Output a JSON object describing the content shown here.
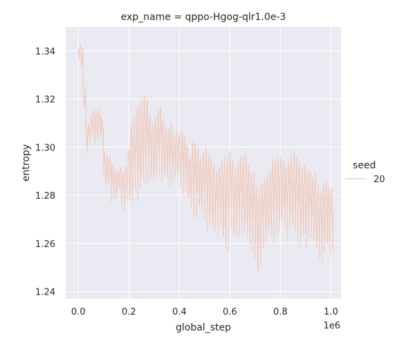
{
  "chart_data": {
    "type": "line",
    "title": "exp_name = qppo-Hgog-qlr1.0e-3",
    "xlabel": "global_step",
    "ylabel": "entropy",
    "x_offset_label": "1e6",
    "xlim": [
      -0.05,
      1.04
    ],
    "ylim": [
      1.237,
      1.35
    ],
    "xticks": [
      0.0,
      0.2,
      0.4,
      0.6,
      0.8,
      1.0
    ],
    "xtick_labels": [
      "0.0",
      "0.2",
      "0.4",
      "0.6",
      "0.8",
      "1.0"
    ],
    "yticks": [
      1.24,
      1.26,
      1.28,
      1.3,
      1.32,
      1.34
    ],
    "ytick_labels": [
      "1.24",
      "1.26",
      "1.28",
      "1.30",
      "1.32",
      "1.34"
    ],
    "grid": true,
    "background": "#eaeaf2",
    "legend": {
      "title": "seed",
      "placement": "right",
      "entries": [
        "20"
      ]
    },
    "series": [
      {
        "name": "20",
        "color": "#efcfc4",
        "x": [
          0.0,
          0.01,
          0.02,
          0.03,
          0.04,
          0.05,
          0.06,
          0.07,
          0.08,
          0.09,
          0.1,
          0.11,
          0.12,
          0.13,
          0.14,
          0.15,
          0.16,
          0.17,
          0.18,
          0.19,
          0.2,
          0.21,
          0.22,
          0.23,
          0.24,
          0.25,
          0.26,
          0.27,
          0.28,
          0.29,
          0.3,
          0.31,
          0.32,
          0.33,
          0.34,
          0.35,
          0.36,
          0.37,
          0.38,
          0.39,
          0.4,
          0.41,
          0.42,
          0.43,
          0.44,
          0.45,
          0.46,
          0.47,
          0.48,
          0.49,
          0.5,
          0.51,
          0.52,
          0.53,
          0.54,
          0.55,
          0.56,
          0.57,
          0.58,
          0.59,
          0.6,
          0.61,
          0.62,
          0.63,
          0.64,
          0.65,
          0.66,
          0.67,
          0.68,
          0.69,
          0.7,
          0.71,
          0.72,
          0.73,
          0.74,
          0.75,
          0.76,
          0.77,
          0.78,
          0.79,
          0.8,
          0.81,
          0.82,
          0.83,
          0.84,
          0.85,
          0.86,
          0.87,
          0.88,
          0.89,
          0.9,
          0.91,
          0.92,
          0.93,
          0.94,
          0.95,
          0.96,
          0.97,
          0.98,
          0.99,
          1.0
        ],
        "min": [
          1.336,
          1.333,
          1.316,
          1.297,
          1.301,
          1.304,
          1.3,
          1.302,
          1.304,
          1.3,
          1.283,
          1.282,
          1.285,
          1.277,
          1.279,
          1.278,
          1.282,
          1.275,
          1.273,
          1.278,
          1.275,
          1.275,
          1.283,
          1.277,
          1.28,
          1.283,
          1.284,
          1.285,
          1.286,
          1.285,
          1.283,
          1.287,
          1.289,
          1.285,
          1.286,
          1.286,
          1.283,
          1.285,
          1.286,
          1.287,
          1.283,
          1.28,
          1.281,
          1.276,
          1.274,
          1.271,
          1.27,
          1.273,
          1.272,
          1.272,
          1.27,
          1.265,
          1.266,
          1.263,
          1.264,
          1.263,
          1.266,
          1.258,
          1.256,
          1.257,
          1.266,
          1.26,
          1.262,
          1.263,
          1.265,
          1.262,
          1.262,
          1.259,
          1.259,
          1.257,
          1.252,
          1.244,
          1.249,
          1.258,
          1.259,
          1.262,
          1.261,
          1.26,
          1.263,
          1.263,
          1.266,
          1.266,
          1.261,
          1.265,
          1.264,
          1.263,
          1.263,
          1.259,
          1.258,
          1.26,
          1.256,
          1.262,
          1.262,
          1.259,
          1.255,
          1.253,
          1.252,
          1.255,
          1.256,
          1.253,
          1.256
        ],
        "max": [
          1.343,
          1.341,
          1.325,
          1.309,
          1.31,
          1.313,
          1.316,
          1.315,
          1.316,
          1.312,
          1.298,
          1.297,
          1.296,
          1.293,
          1.291,
          1.29,
          1.292,
          1.29,
          1.292,
          1.297,
          1.306,
          1.313,
          1.31,
          1.316,
          1.318,
          1.32,
          1.322,
          1.32,
          1.314,
          1.31,
          1.313,
          1.316,
          1.317,
          1.312,
          1.308,
          1.308,
          1.31,
          1.306,
          1.307,
          1.306,
          1.305,
          1.307,
          1.304,
          1.3,
          1.297,
          1.303,
          1.302,
          1.3,
          1.296,
          1.298,
          1.3,
          1.298,
          1.296,
          1.293,
          1.29,
          1.292,
          1.294,
          1.296,
          1.295,
          1.296,
          1.298,
          1.295,
          1.292,
          1.294,
          1.296,
          1.297,
          1.298,
          1.293,
          1.289,
          1.29,
          1.284,
          1.283,
          1.285,
          1.287,
          1.289,
          1.29,
          1.294,
          1.296,
          1.293,
          1.296,
          1.296,
          1.295,
          1.292,
          1.294,
          1.297,
          1.299,
          1.296,
          1.294,
          1.292,
          1.293,
          1.291,
          1.29,
          1.288,
          1.29,
          1.285,
          1.283,
          1.282,
          1.285,
          1.287,
          1.284,
          1.283
        ]
      }
    ]
  }
}
